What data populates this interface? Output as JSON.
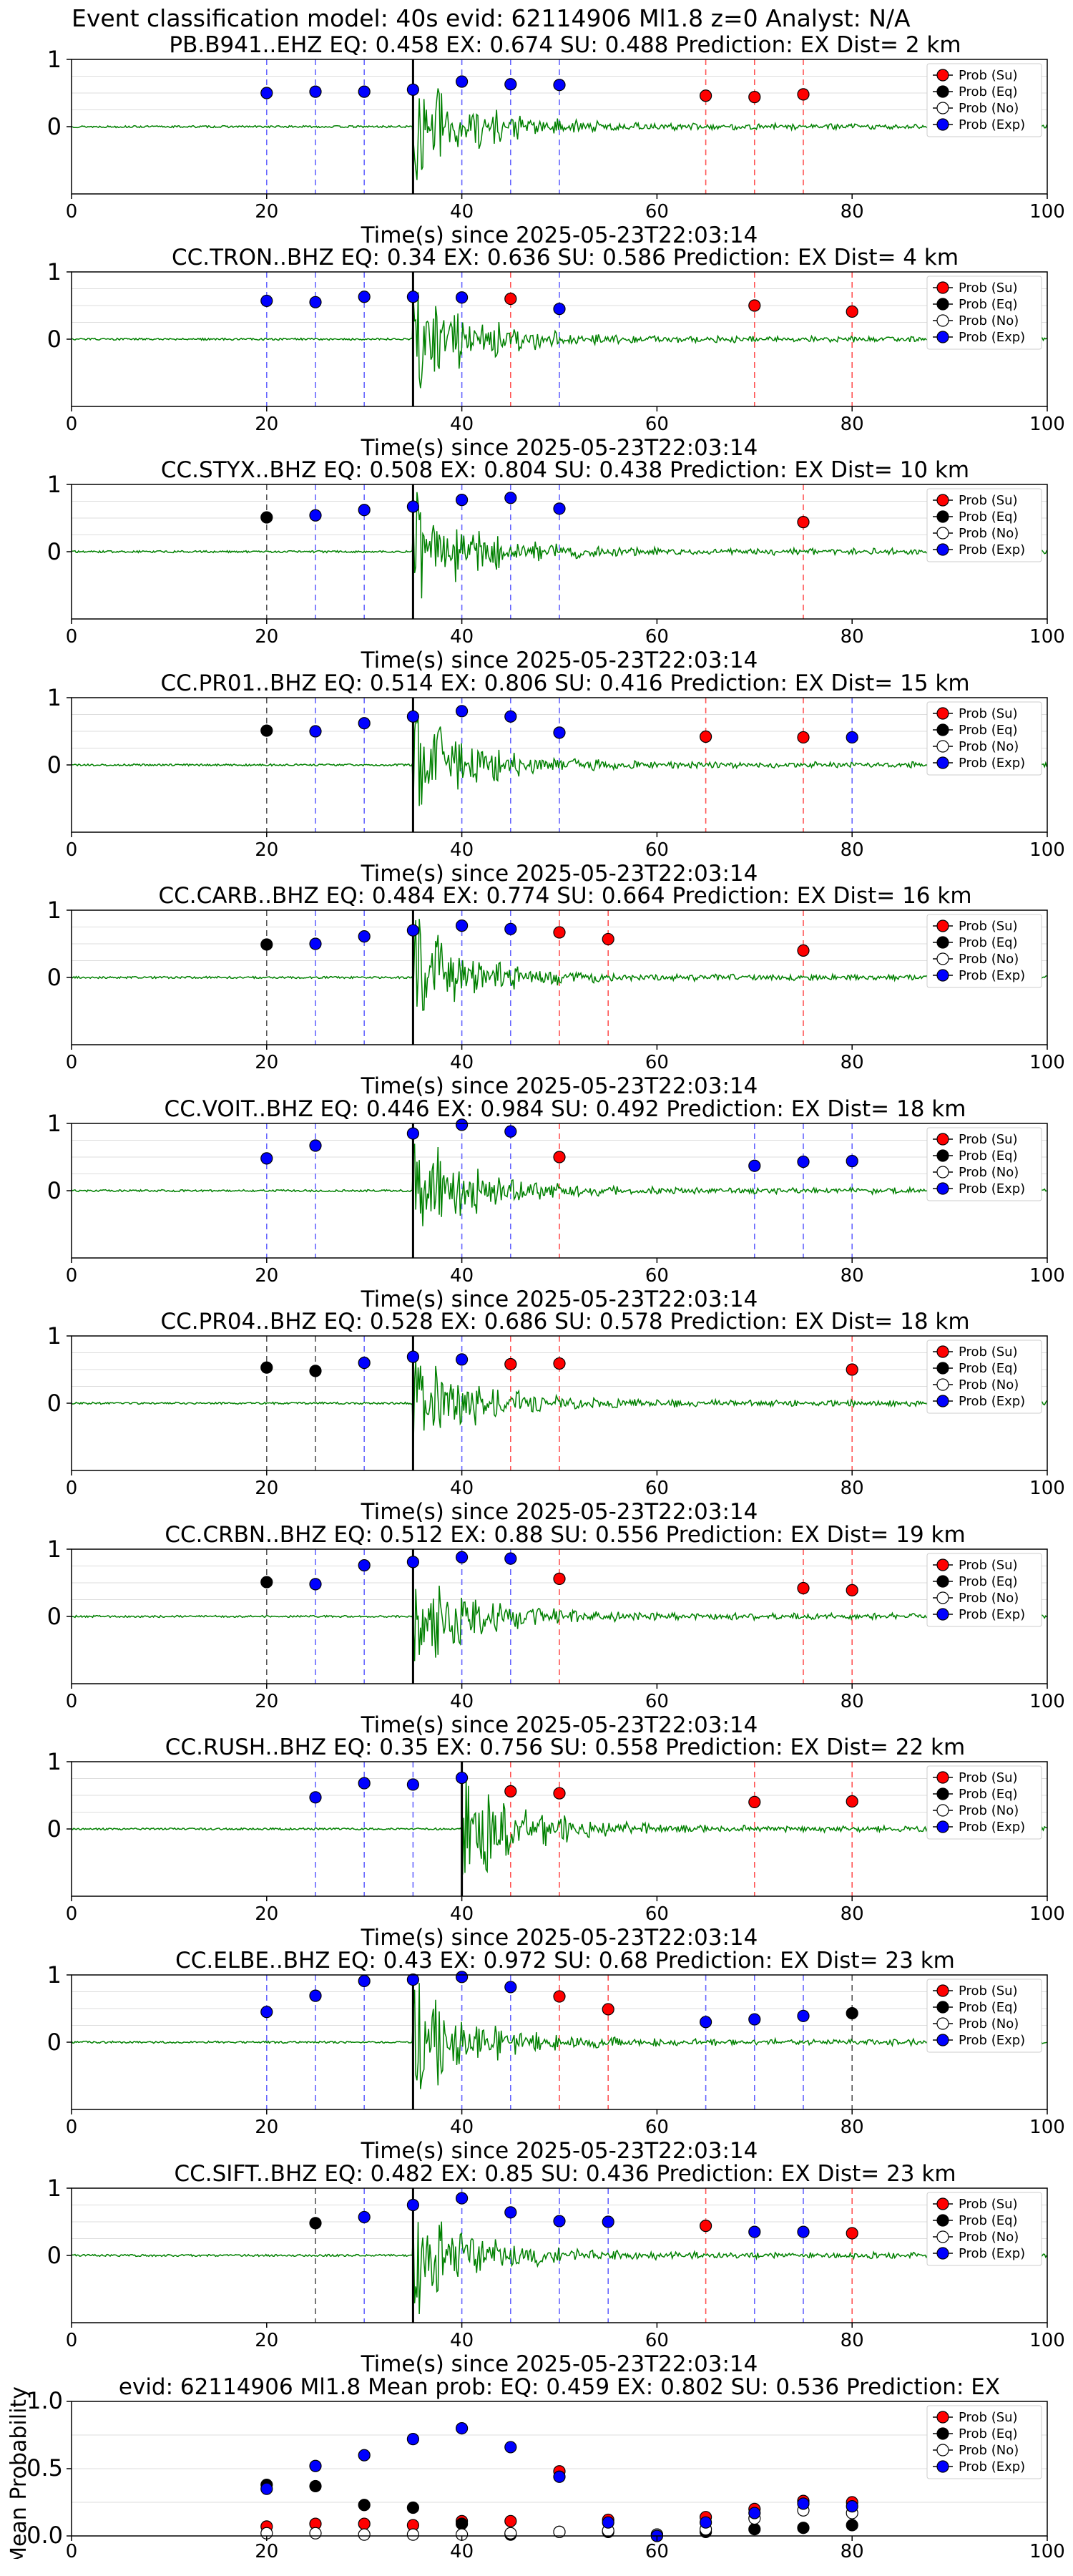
{
  "figure_title": "Event classification model: 40s evid: 62114906 Ml1.8 z=0 Analyst: N/A",
  "legend": [
    "Prob (Su)",
    "Prob (Eq)",
    "Prob (No)",
    "Prob (Exp)"
  ],
  "colors": {
    "su": "#ff0000",
    "eq": "#000000",
    "no": "#ffffff",
    "exp": "#0000ff",
    "wave": "#008000",
    "grid": "#dddddd"
  },
  "chart_data": [
    {
      "type": "scatter",
      "station": "PB.B941..EHZ",
      "title": "PB.B941..EHZ   EQ: 0.458  EX: 0.674  SU: 0.488   Prediction: EX    Dist= 2 km",
      "xlabel": "Time(s) since 2025-05-23T22:03:14",
      "xlim": [
        0,
        100
      ],
      "ylim": [
        -1,
        1
      ],
      "xticks": [
        0,
        20,
        40,
        60,
        80,
        100
      ],
      "yticks": [
        1,
        0
      ],
      "arrival": 35,
      "points": [
        {
          "x": 20,
          "y": 0.5,
          "c": "exp"
        },
        {
          "x": 25,
          "y": 0.52,
          "c": "exp"
        },
        {
          "x": 30,
          "y": 0.52,
          "c": "exp"
        },
        {
          "x": 35,
          "y": 0.55,
          "c": "exp"
        },
        {
          "x": 40,
          "y": 0.67,
          "c": "exp"
        },
        {
          "x": 45,
          "y": 0.63,
          "c": "exp"
        },
        {
          "x": 50,
          "y": 0.62,
          "c": "exp"
        },
        {
          "x": 65,
          "y": 0.46,
          "c": "su"
        },
        {
          "x": 70,
          "y": 0.44,
          "c": "su"
        },
        {
          "x": 75,
          "y": 0.48,
          "c": "su"
        }
      ]
    },
    {
      "type": "scatter",
      "station": "CC.TRON..BHZ",
      "title": "CC.TRON..BHZ   EQ: 0.34  EX: 0.636  SU: 0.586   Prediction: EX    Dist= 4 km",
      "xlabel": "Time(s) since 2025-05-23T22:03:14",
      "xlim": [
        0,
        100
      ],
      "ylim": [
        -1,
        1
      ],
      "xticks": [
        0,
        20,
        40,
        60,
        80,
        100
      ],
      "yticks": [
        1,
        0
      ],
      "arrival": 35,
      "points": [
        {
          "x": 20,
          "y": 0.57,
          "c": "exp"
        },
        {
          "x": 25,
          "y": 0.55,
          "c": "exp"
        },
        {
          "x": 30,
          "y": 0.63,
          "c": "exp"
        },
        {
          "x": 35,
          "y": 0.63,
          "c": "exp"
        },
        {
          "x": 40,
          "y": 0.62,
          "c": "exp"
        },
        {
          "x": 45,
          "y": 0.6,
          "c": "su"
        },
        {
          "x": 50,
          "y": 0.45,
          "c": "exp"
        },
        {
          "x": 70,
          "y": 0.5,
          "c": "su"
        },
        {
          "x": 80,
          "y": 0.41,
          "c": "su"
        }
      ]
    },
    {
      "type": "scatter",
      "station": "CC.STYX..BHZ",
      "title": "CC.STYX..BHZ   EQ: 0.508  EX: 0.804  SU: 0.438   Prediction: EX    Dist= 10 km",
      "xlabel": "Time(s) since 2025-05-23T22:03:14",
      "xlim": [
        0,
        100
      ],
      "ylim": [
        -1,
        1
      ],
      "xticks": [
        0,
        20,
        40,
        60,
        80,
        100
      ],
      "yticks": [
        1,
        0
      ],
      "arrival": 35,
      "points": [
        {
          "x": 20,
          "y": 0.51,
          "c": "eq"
        },
        {
          "x": 25,
          "y": 0.54,
          "c": "exp"
        },
        {
          "x": 30,
          "y": 0.62,
          "c": "exp"
        },
        {
          "x": 35,
          "y": 0.67,
          "c": "exp"
        },
        {
          "x": 40,
          "y": 0.77,
          "c": "exp"
        },
        {
          "x": 45,
          "y": 0.8,
          "c": "exp"
        },
        {
          "x": 50,
          "y": 0.64,
          "c": "exp"
        },
        {
          "x": 75,
          "y": 0.44,
          "c": "su"
        }
      ]
    },
    {
      "type": "scatter",
      "station": "CC.PR01..BHZ",
      "title": "CC.PR01..BHZ   EQ: 0.514  EX: 0.806  SU: 0.416   Prediction: EX    Dist= 15 km",
      "xlabel": "Time(s) since 2025-05-23T22:03:14",
      "xlim": [
        0,
        100
      ],
      "ylim": [
        -1,
        1
      ],
      "xticks": [
        0,
        20,
        40,
        60,
        80,
        100
      ],
      "yticks": [
        1,
        0
      ],
      "arrival": 35,
      "points": [
        {
          "x": 20,
          "y": 0.51,
          "c": "eq"
        },
        {
          "x": 25,
          "y": 0.5,
          "c": "exp"
        },
        {
          "x": 30,
          "y": 0.62,
          "c": "exp"
        },
        {
          "x": 35,
          "y": 0.72,
          "c": "exp"
        },
        {
          "x": 40,
          "y": 0.8,
          "c": "exp"
        },
        {
          "x": 45,
          "y": 0.72,
          "c": "exp"
        },
        {
          "x": 50,
          "y": 0.48,
          "c": "exp"
        },
        {
          "x": 65,
          "y": 0.42,
          "c": "su"
        },
        {
          "x": 75,
          "y": 0.41,
          "c": "su"
        },
        {
          "x": 80,
          "y": 0.41,
          "c": "exp"
        }
      ]
    },
    {
      "type": "scatter",
      "station": "CC.CARB..BHZ",
      "title": "CC.CARB..BHZ   EQ: 0.484  EX: 0.774  SU: 0.664   Prediction: EX    Dist= 16 km",
      "xlabel": "Time(s) since 2025-05-23T22:03:14",
      "xlim": [
        0,
        100
      ],
      "ylim": [
        -1,
        1
      ],
      "xticks": [
        0,
        20,
        40,
        60,
        80,
        100
      ],
      "yticks": [
        1,
        0
      ],
      "arrival": 35,
      "points": [
        {
          "x": 20,
          "y": 0.49,
          "c": "eq"
        },
        {
          "x": 25,
          "y": 0.5,
          "c": "exp"
        },
        {
          "x": 30,
          "y": 0.61,
          "c": "exp"
        },
        {
          "x": 35,
          "y": 0.7,
          "c": "exp"
        },
        {
          "x": 40,
          "y": 0.77,
          "c": "exp"
        },
        {
          "x": 45,
          "y": 0.72,
          "c": "exp"
        },
        {
          "x": 50,
          "y": 0.67,
          "c": "su"
        },
        {
          "x": 55,
          "y": 0.57,
          "c": "su"
        },
        {
          "x": 75,
          "y": 0.4,
          "c": "su"
        }
      ]
    },
    {
      "type": "scatter",
      "station": "CC.VOIT..BHZ",
      "title": "CC.VOIT..BHZ   EQ: 0.446  EX: 0.984  SU: 0.492   Prediction: EX    Dist= 18 km",
      "xlabel": "Time(s) since 2025-05-23T22:03:14",
      "xlim": [
        0,
        100
      ],
      "ylim": [
        -1,
        1
      ],
      "xticks": [
        0,
        20,
        40,
        60,
        80,
        100
      ],
      "yticks": [
        1,
        0
      ],
      "arrival": 35,
      "points": [
        {
          "x": 20,
          "y": 0.48,
          "c": "exp"
        },
        {
          "x": 25,
          "y": 0.67,
          "c": "exp"
        },
        {
          "x": 35,
          "y": 0.85,
          "c": "exp"
        },
        {
          "x": 40,
          "y": 0.98,
          "c": "exp"
        },
        {
          "x": 45,
          "y": 0.88,
          "c": "exp"
        },
        {
          "x": 50,
          "y": 0.5,
          "c": "su"
        },
        {
          "x": 70,
          "y": 0.37,
          "c": "exp"
        },
        {
          "x": 75,
          "y": 0.43,
          "c": "exp"
        },
        {
          "x": 80,
          "y": 0.44,
          "c": "exp"
        }
      ]
    },
    {
      "type": "scatter",
      "station": "CC.PR04..BHZ",
      "title": "CC.PR04..BHZ   EQ: 0.528  EX: 0.686  SU: 0.578   Prediction: EX    Dist= 18 km",
      "xlabel": "Time(s) since 2025-05-23T22:03:14",
      "xlim": [
        0,
        100
      ],
      "ylim": [
        -1,
        1
      ],
      "xticks": [
        0,
        20,
        40,
        60,
        80,
        100
      ],
      "yticks": [
        1,
        0
      ],
      "arrival": 35,
      "points": [
        {
          "x": 20,
          "y": 0.53,
          "c": "eq"
        },
        {
          "x": 25,
          "y": 0.48,
          "c": "eq"
        },
        {
          "x": 30,
          "y": 0.6,
          "c": "exp"
        },
        {
          "x": 35,
          "y": 0.69,
          "c": "exp"
        },
        {
          "x": 40,
          "y": 0.65,
          "c": "exp"
        },
        {
          "x": 45,
          "y": 0.58,
          "c": "su"
        },
        {
          "x": 50,
          "y": 0.59,
          "c": "su"
        },
        {
          "x": 80,
          "y": 0.5,
          "c": "su"
        }
      ]
    },
    {
      "type": "scatter",
      "station": "CC.CRBN..BHZ",
      "title": "CC.CRBN..BHZ   EQ: 0.512  EX: 0.88  SU: 0.556   Prediction: EX    Dist= 19 km",
      "xlabel": "Time(s) since 2025-05-23T22:03:14",
      "xlim": [
        0,
        100
      ],
      "ylim": [
        -1,
        1
      ],
      "xticks": [
        0,
        20,
        40,
        60,
        80,
        100
      ],
      "yticks": [
        1,
        0
      ],
      "arrival": 35,
      "points": [
        {
          "x": 20,
          "y": 0.51,
          "c": "eq"
        },
        {
          "x": 25,
          "y": 0.48,
          "c": "exp"
        },
        {
          "x": 30,
          "y": 0.76,
          "c": "exp"
        },
        {
          "x": 35,
          "y": 0.81,
          "c": "exp"
        },
        {
          "x": 40,
          "y": 0.88,
          "c": "exp"
        },
        {
          "x": 45,
          "y": 0.86,
          "c": "exp"
        },
        {
          "x": 50,
          "y": 0.56,
          "c": "su"
        },
        {
          "x": 75,
          "y": 0.42,
          "c": "su"
        },
        {
          "x": 80,
          "y": 0.39,
          "c": "su"
        }
      ]
    },
    {
      "type": "scatter",
      "station": "CC.RUSH..BHZ",
      "title": "CC.RUSH..BHZ   EQ: 0.35  EX: 0.756  SU: 0.558   Prediction: EX    Dist= 22 km",
      "xlabel": "Time(s) since 2025-05-23T22:03:14",
      "xlim": [
        0,
        100
      ],
      "ylim": [
        -1,
        1
      ],
      "xticks": [
        0,
        20,
        40,
        60,
        80,
        100
      ],
      "yticks": [
        1,
        0
      ],
      "arrival": 40,
      "points": [
        {
          "x": 25,
          "y": 0.47,
          "c": "exp"
        },
        {
          "x": 30,
          "y": 0.68,
          "c": "exp"
        },
        {
          "x": 35,
          "y": 0.66,
          "c": "exp"
        },
        {
          "x": 40,
          "y": 0.76,
          "c": "exp"
        },
        {
          "x": 45,
          "y": 0.56,
          "c": "su"
        },
        {
          "x": 50,
          "y": 0.53,
          "c": "su"
        },
        {
          "x": 70,
          "y": 0.4,
          "c": "su"
        },
        {
          "x": 80,
          "y": 0.41,
          "c": "su"
        }
      ]
    },
    {
      "type": "scatter",
      "station": "CC.ELBE..BHZ",
      "title": "CC.ELBE..BHZ   EQ: 0.43  EX: 0.972  SU: 0.68   Prediction: EX    Dist= 23 km",
      "xlabel": "Time(s) since 2025-05-23T22:03:14",
      "xlim": [
        0,
        100
      ],
      "ylim": [
        -1,
        1
      ],
      "xticks": [
        0,
        20,
        40,
        60,
        80,
        100
      ],
      "yticks": [
        1,
        0
      ],
      "arrival": 35,
      "points": [
        {
          "x": 20,
          "y": 0.45,
          "c": "exp"
        },
        {
          "x": 25,
          "y": 0.69,
          "c": "exp"
        },
        {
          "x": 30,
          "y": 0.91,
          "c": "exp"
        },
        {
          "x": 35,
          "y": 0.93,
          "c": "exp"
        },
        {
          "x": 40,
          "y": 0.97,
          "c": "exp"
        },
        {
          "x": 45,
          "y": 0.82,
          "c": "exp"
        },
        {
          "x": 50,
          "y": 0.68,
          "c": "su"
        },
        {
          "x": 55,
          "y": 0.49,
          "c": "su"
        },
        {
          "x": 65,
          "y": 0.3,
          "c": "exp"
        },
        {
          "x": 70,
          "y": 0.34,
          "c": "exp"
        },
        {
          "x": 75,
          "y": 0.39,
          "c": "exp"
        },
        {
          "x": 80,
          "y": 0.43,
          "c": "eq"
        }
      ]
    },
    {
      "type": "scatter",
      "station": "CC.SIFT..BHZ",
      "title": "CC.SIFT..BHZ   EQ: 0.482  EX: 0.85  SU: 0.436   Prediction: EX    Dist= 23 km",
      "xlabel": "Time(s) since 2025-05-23T22:03:14",
      "xlim": [
        0,
        100
      ],
      "ylim": [
        -1,
        1
      ],
      "xticks": [
        0,
        20,
        40,
        60,
        80,
        100
      ],
      "yticks": [
        1,
        0
      ],
      "arrival": 35,
      "points": [
        {
          "x": 25,
          "y": 0.48,
          "c": "eq"
        },
        {
          "x": 30,
          "y": 0.57,
          "c": "exp"
        },
        {
          "x": 35,
          "y": 0.75,
          "c": "exp"
        },
        {
          "x": 40,
          "y": 0.85,
          "c": "exp"
        },
        {
          "x": 45,
          "y": 0.64,
          "c": "exp"
        },
        {
          "x": 50,
          "y": 0.51,
          "c": "exp"
        },
        {
          "x": 55,
          "y": 0.5,
          "c": "exp"
        },
        {
          "x": 65,
          "y": 0.44,
          "c": "su"
        },
        {
          "x": 70,
          "y": 0.35,
          "c": "exp"
        },
        {
          "x": 75,
          "y": 0.35,
          "c": "exp"
        },
        {
          "x": 80,
          "y": 0.33,
          "c": "su"
        }
      ]
    },
    {
      "type": "scatter",
      "station": "mean",
      "title": "evid: 62114906  Ml1.8   Mean prob:   EQ: 0.459  EX: 0.802  SU: 0.536   Prediction: EX",
      "xlabel": "",
      "ylabel": "Mean Probability",
      "xlim": [
        0,
        100
      ],
      "ylim": [
        0,
        1
      ],
      "xticks": [
        0,
        20,
        40,
        60,
        80,
        100
      ],
      "yticks": [
        1.0,
        0.5,
        0.0
      ],
      "yticklabels": [
        "1.0",
        "0.5",
        "0.0"
      ],
      "series": [
        {
          "name": "Prob (Su)",
          "c": "su",
          "x": [
            20,
            25,
            30,
            35,
            40,
            45,
            50,
            55,
            60,
            65,
            70,
            75,
            80
          ],
          "y": [
            0.07,
            0.09,
            0.09,
            0.08,
            0.11,
            0.11,
            0.48,
            0.12,
            0.01,
            0.14,
            0.2,
            0.26,
            0.25
          ]
        },
        {
          "name": "Prob (Eq)",
          "c": "eq",
          "x": [
            20,
            25,
            30,
            35,
            40,
            45,
            50,
            55,
            60,
            65,
            70,
            75,
            80
          ],
          "y": [
            0.38,
            0.37,
            0.23,
            0.21,
            0.09,
            0.01,
            0.03,
            0.03,
            0.0,
            0.03,
            0.05,
            0.06,
            0.08
          ]
        },
        {
          "name": "Prob (No)",
          "c": "no",
          "x": [
            20,
            25,
            30,
            35,
            40,
            45,
            50,
            55,
            60,
            65,
            70,
            75,
            80
          ],
          "y": [
            0.02,
            0.02,
            0.01,
            0.01,
            0.01,
            0.02,
            0.03,
            0.04,
            0.01,
            0.05,
            0.13,
            0.19,
            0.17
          ]
        },
        {
          "name": "Prob (Exp)",
          "c": "exp",
          "x": [
            20,
            25,
            30,
            35,
            40,
            45,
            50,
            55,
            60,
            65,
            70,
            75,
            80
          ],
          "y": [
            0.35,
            0.52,
            0.6,
            0.72,
            0.8,
            0.66,
            0.44,
            0.1,
            0.0,
            0.1,
            0.17,
            0.24,
            0.22
          ]
        }
      ]
    }
  ]
}
